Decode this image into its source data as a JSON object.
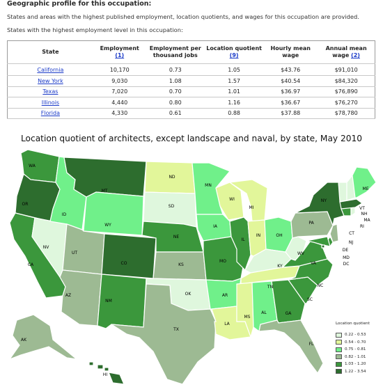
{
  "page": {
    "heading": "Geographic profile for this occupation:",
    "intro_1": "States and areas with the highest published employment, location quotients, and wages for this occupation are provided.",
    "intro_2": "States with the highest employment level in this occupation:"
  },
  "table": {
    "headers": {
      "state": "State",
      "employment": "Employment",
      "employment_ref": "(1)",
      "per_thousand": "Employment per thousand jobs",
      "lq": "Location quotient",
      "lq_ref": "(9)",
      "hourly": "Hourly mean wage",
      "annual": "Annual mean wage",
      "annual_ref": "(2)"
    },
    "rows": [
      {
        "state": "California",
        "employment": "10,170",
        "per_thousand": "0.73",
        "lq": "1.05",
        "hourly": "$43.76",
        "annual": "$91,010"
      },
      {
        "state": "New York",
        "employment": "9,030",
        "per_thousand": "1.08",
        "lq": "1.57",
        "hourly": "$40.54",
        "annual": "$84,320"
      },
      {
        "state": "Texas",
        "employment": "7,020",
        "per_thousand": "0.70",
        "lq": "1.01",
        "hourly": "$36.97",
        "annual": "$76,890"
      },
      {
        "state": "Illinois",
        "employment": "4,440",
        "per_thousand": "0.80",
        "lq": "1.16",
        "hourly": "$36.67",
        "annual": "$76,270"
      },
      {
        "state": "Florida",
        "employment": "4,330",
        "per_thousand": "0.61",
        "lq": "0.88",
        "hourly": "$37.88",
        "annual": "$78,780"
      }
    ]
  },
  "map": {
    "title": "Location quotient of architects, except landscape and naval, by state, May 2010",
    "legend_title": "Location quotient",
    "legend": [
      {
        "label": "0.22 - 0.53",
        "color": "#dff7dd"
      },
      {
        "label": "0.54 - 0.70",
        "color": "#e2f69a"
      },
      {
        "label": "0.75 - 0.81",
        "color": "#70f08a"
      },
      {
        "label": "0.82 - 1.01",
        "color": "#9dba93"
      },
      {
        "label": "1.03 - 1.20",
        "color": "#3b973c"
      },
      {
        "label": "1.22 - 3.54",
        "color": "#2d6d2e"
      }
    ],
    "states": {
      "WA": 4,
      "OR": 5,
      "CA": 4,
      "ID": 2,
      "NV": 0,
      "MT": 5,
      "WY": 2,
      "UT": 3,
      "AZ": 3,
      "CO": 5,
      "NM": 4,
      "ND": 1,
      "SD": 0,
      "NE": 4,
      "KS": 3,
      "OK": 0,
      "TX": 3,
      "MN": 2,
      "IA": 2,
      "MO": 4,
      "AR": 2,
      "LA": 1,
      "WI": 1,
      "IL": 4,
      "MS": 1,
      "MI": 1,
      "IN": 1,
      "KY": 0,
      "TN": 1,
      "AL": 2,
      "OH": 2,
      "WV": 0,
      "GA": 4,
      "FL": 3,
      "SC": 4,
      "NC": 4,
      "VA": 4,
      "PA": 3,
      "NY": 5,
      "ME": 2,
      "VT": 0,
      "NH": 0,
      "MA": 5,
      "RI": 0,
      "CT": 4,
      "NJ": 3,
      "DE": 4,
      "MD": 4,
      "DC": 5,
      "AK": 3,
      "HI": 5
    }
  }
}
